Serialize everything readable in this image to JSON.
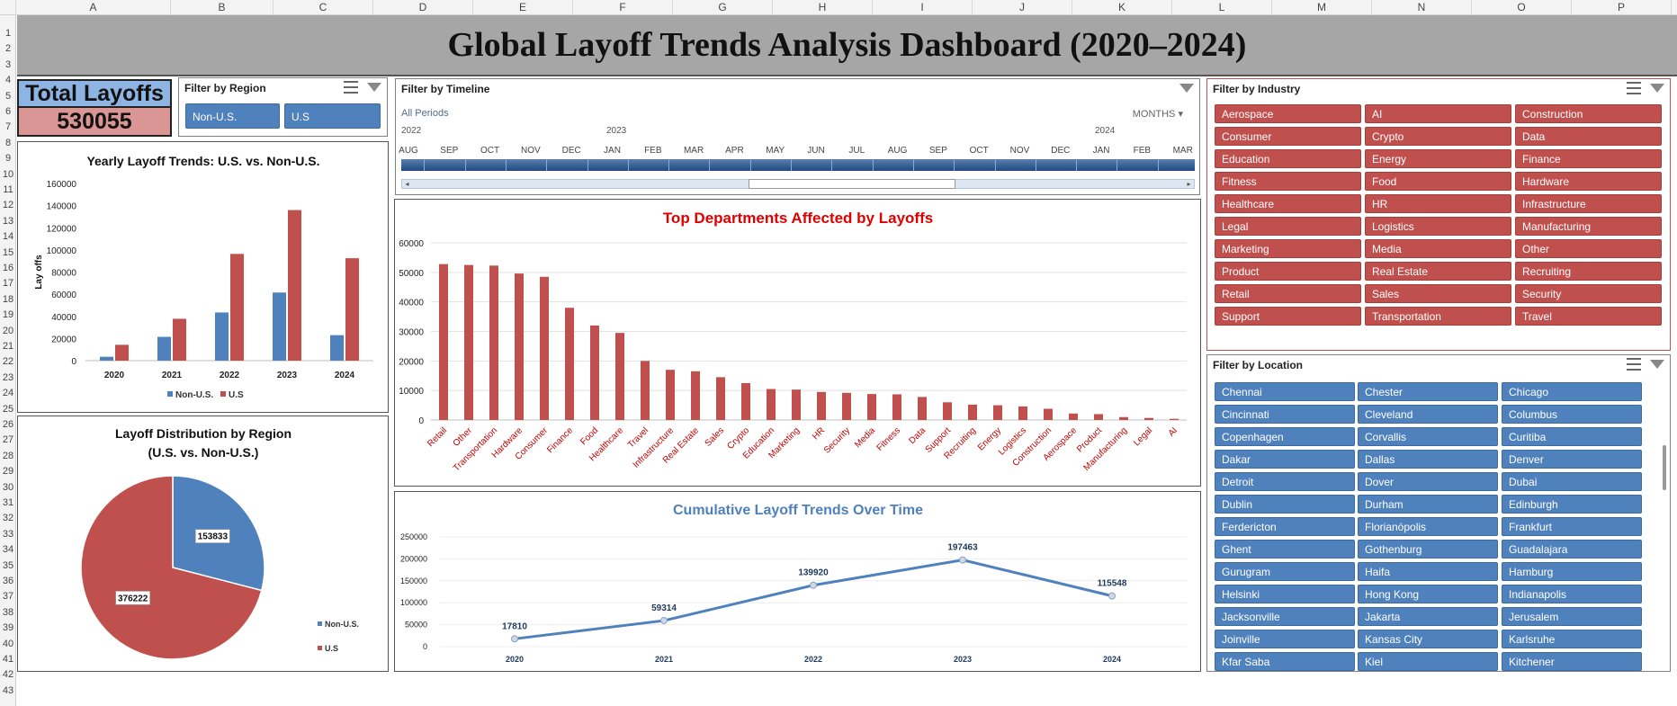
{
  "sheet": {
    "columns": [
      "A",
      "B",
      "C",
      "D",
      "E",
      "F",
      "G",
      "H",
      "I",
      "J",
      "K",
      "L",
      "M",
      "N",
      "O",
      "P"
    ],
    "rows": [
      "1",
      "2",
      "3",
      "4",
      "5",
      "6",
      "7",
      "8",
      "9",
      "10",
      "11",
      "12",
      "13",
      "14",
      "15",
      "16",
      "17",
      "18",
      "19",
      "20",
      "21",
      "22",
      "23",
      "24",
      "25",
      "26",
      "27",
      "28",
      "29",
      "30",
      "31",
      "32",
      "33",
      "34",
      "35",
      "36",
      "37",
      "38",
      "39",
      "40",
      "41",
      "42",
      "43"
    ]
  },
  "header": {
    "title": "Global Layoff Trends Analysis Dashboard (2020–2024)"
  },
  "total": {
    "label": "Total Layoffs",
    "value": "530055"
  },
  "region_slicer": {
    "title": "Filter by Region",
    "items": [
      "Non-U.S.",
      "U.S"
    ]
  },
  "timeline": {
    "title": "Filter by Timeline",
    "period_label": "All Periods",
    "unit_label": "MONTHS",
    "years": [
      "2022",
      "2023",
      "2024"
    ],
    "months": [
      "AUG",
      "SEP",
      "OCT",
      "NOV",
      "DEC",
      "JAN",
      "FEB",
      "MAR",
      "APR",
      "MAY",
      "JUN",
      "JUL",
      "AUG",
      "SEP",
      "OCT",
      "NOV",
      "DEC",
      "JAN",
      "FEB",
      "MAR"
    ]
  },
  "industry_slicer": {
    "title": "Filter by Industry",
    "items": [
      "Aerospace",
      "AI",
      "Construction",
      "Consumer",
      "Crypto",
      "Data",
      "Education",
      "Energy",
      "Finance",
      "Fitness",
      "Food",
      "Hardware",
      "Healthcare",
      "HR",
      "Infrastructure",
      "Legal",
      "Logistics",
      "Manufacturing",
      "Marketing",
      "Media",
      "Other",
      "Product",
      "Real Estate",
      "Recruiting",
      "Retail",
      "Sales",
      "Security",
      "Support",
      "Transportation",
      "Travel"
    ]
  },
  "location_slicer": {
    "title": "Filter by Location",
    "items": [
      "Chennai",
      "Chester",
      "Chicago",
      "Cincinnati",
      "Cleveland",
      "Columbus",
      "Copenhagen",
      "Corvallis",
      "Curitiba",
      "Dakar",
      "Dallas",
      "Denver",
      "Detroit",
      "Dover",
      "Dubai",
      "Dublin",
      "Durham",
      "Edinburgh",
      "Ferdericton",
      "Florianópolis",
      "Frankfurt",
      "Ghent",
      "Gothenburg",
      "Guadalajara",
      "Gurugram",
      "Haifa",
      "Hamburg",
      "Helsinki",
      "Hong Kong",
      "Indianapolis",
      "Jacksonville",
      "Jakarta",
      "Jerusalem",
      "Joinville",
      "Kansas City",
      "Karlsruhe",
      "Kfar Saba",
      "Kiel",
      "Kitchener"
    ]
  },
  "colors": {
    "us": "#c0504d",
    "non_us": "#4f81bd",
    "line": "#4f81bd",
    "dept_title": "#e00000",
    "cum_title": "#4f81bd"
  },
  "chart_data": [
    {
      "id": "yearly",
      "type": "bar",
      "title": "Yearly Layoff Trends: U.S. vs. Non-U.S.",
      "ylabel": "Lay offs",
      "categories": [
        "2020",
        "2021",
        "2022",
        "2023",
        "2024"
      ],
      "series": [
        {
          "name": "Non-U.S.",
          "values": [
            3500,
            21500,
            43500,
            61500,
            23000
          ]
        },
        {
          "name": "U.S",
          "values": [
            14300,
            37800,
            96400,
            136000,
            92500
          ]
        }
      ],
      "ylim": [
        0,
        160000
      ],
      "yticks": [
        "0",
        "20000",
        "40000",
        "60000",
        "80000",
        "100000",
        "120000",
        "140000",
        "160000"
      ],
      "legend": "bottom"
    },
    {
      "id": "pie",
      "type": "pie",
      "title": "Layoff Distribution by Region",
      "subtitle": "(U.S. vs. Non-U.S.)",
      "slices": [
        {
          "name": "Non-U.S.",
          "value": 153833,
          "label": "153833"
        },
        {
          "name": "U.S",
          "value": 376222,
          "label": "376222"
        }
      ],
      "legend": "right"
    },
    {
      "id": "departments",
      "type": "bar",
      "title": "Top Departments Affected by Layoffs",
      "categories": [
        "Retail",
        "Other",
        "Transportation",
        "Hardware",
        "Consumer",
        "Finance",
        "Food",
        "Healthcare",
        "Travel",
        "Infrastructure",
        "Real Estate",
        "Sales",
        "Crypto",
        "Education",
        "Marketing",
        "HR",
        "Security",
        "Media",
        "Fitness",
        "Data",
        "Support",
        "Recruiting",
        "Energy",
        "Logistics",
        "Construction",
        "Aerospace",
        "Product",
        "Manufacturing",
        "Legal",
        "AI"
      ],
      "values": [
        52800,
        52500,
        52300,
        49600,
        48500,
        38000,
        32000,
        29500,
        20000,
        17000,
        16500,
        14500,
        12500,
        10500,
        10300,
        9500,
        9200,
        8800,
        8700,
        7800,
        6000,
        5200,
        5000,
        4600,
        3800,
        2200,
        2000,
        1000,
        700,
        400
      ],
      "ylim": [
        0,
        60000
      ],
      "yticks": [
        "0",
        "10000",
        "20000",
        "30000",
        "40000",
        "50000",
        "60000"
      ]
    },
    {
      "id": "cumulative",
      "type": "line",
      "title": "Cumulative Layoff Trends Over Time",
      "x": [
        "2020",
        "2021",
        "2022",
        "2023",
        "2024"
      ],
      "values": [
        17810,
        59314,
        139920,
        197463,
        115548
      ],
      "labels": [
        "17810",
        "59314",
        "139920",
        "197463",
        "115548"
      ],
      "ylim": [
        0,
        250000
      ],
      "yticks": [
        "0",
        "50000",
        "100000",
        "150000",
        "200000",
        "250000"
      ]
    }
  ]
}
